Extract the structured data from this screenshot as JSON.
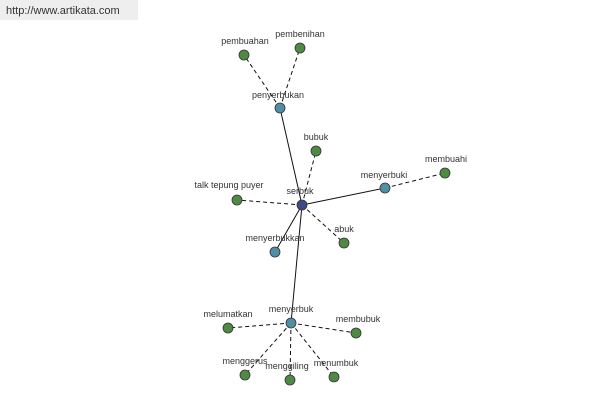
{
  "header": {
    "url": "http://www.artikata.com"
  },
  "nodes": [
    {
      "label": "serbuk"
    },
    {
      "label": "penyerbukan"
    },
    {
      "label": "pembuahan"
    },
    {
      "label": "pembenihan"
    },
    {
      "label": "bubuk"
    },
    {
      "label": "menyerbuki"
    },
    {
      "label": "membuahi"
    },
    {
      "label": "talk tepung puyer"
    },
    {
      "label": "abuk"
    },
    {
      "label": "menyerbukkan"
    },
    {
      "label": "menyerbuk"
    },
    {
      "label": "melumatkan"
    },
    {
      "label": "membubuk"
    },
    {
      "label": "menggerus"
    },
    {
      "label": "menggiling"
    },
    {
      "label": "menumbuk"
    }
  ]
}
